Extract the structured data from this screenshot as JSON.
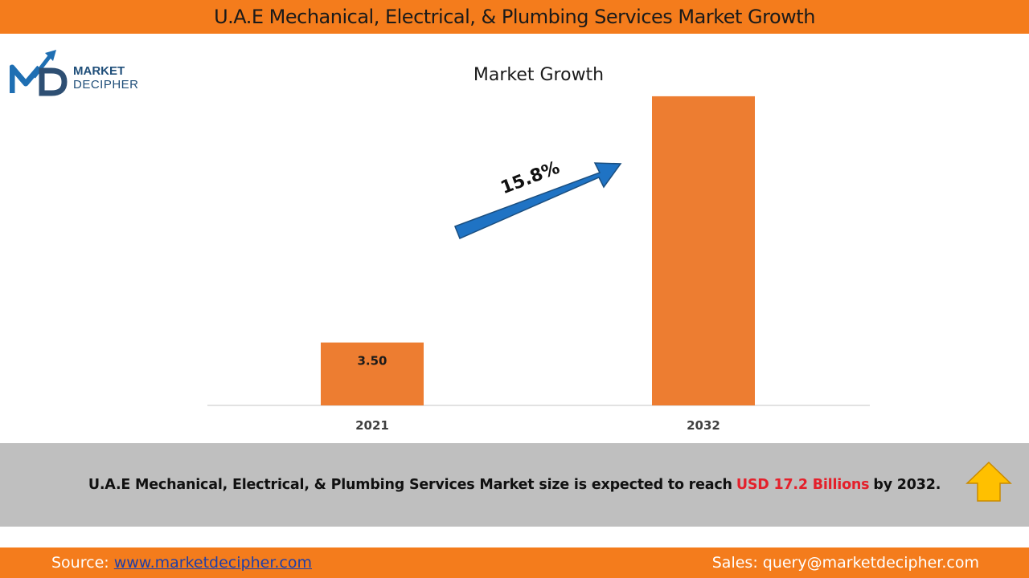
{
  "header": {
    "title": "U.A.E Mechanical, Electrical, & Plumbing Services Market Growth"
  },
  "logo": {
    "line1": "MARKET",
    "line2": "DECIPHER",
    "icon": "market-decipher-logo-icon"
  },
  "chart_data": {
    "type": "bar",
    "title": "Market Growth",
    "categories": [
      "2021",
      "2032"
    ],
    "values": [
      3.5,
      17.2
    ],
    "data_labels": [
      "3.50",
      ""
    ],
    "xlabel": "",
    "ylabel": "",
    "ylim": [
      0,
      18
    ],
    "grid": false,
    "bar_color": "#ed7d31",
    "annotation": {
      "text": "15.8%",
      "arrow_color": "#1f73c4"
    }
  },
  "summary": {
    "text_before": "U.A.E Mechanical, Electrical, & Plumbing Services Market size is expected to reach",
    "highlight": "USD 17.2 Billions",
    "text_after": "by 2032.",
    "highlight_color": "#e4202b",
    "icon": "up-arrow-icon"
  },
  "footer": {
    "source_label": "Source:",
    "source_link": "www.marketdecipher.com",
    "sales_text": "Sales: query@marketdecipher.com"
  }
}
